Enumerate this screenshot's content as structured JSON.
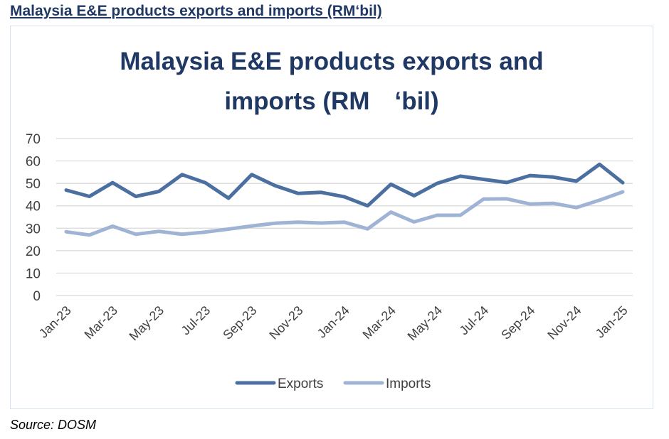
{
  "heading": "Malaysia E&E products exports and imports (RM‘bil)",
  "source": "Source: DOSM",
  "colors": {
    "exports": "#4a6fa0",
    "imports": "#9fb3d4",
    "title": "#1f3864",
    "grid": "#d9d9d9"
  },
  "chart_data": {
    "type": "line",
    "title_lines": [
      "Malaysia E&E products exports and",
      "imports (RM　‘bil)"
    ],
    "xlabel": "",
    "ylabel": "",
    "ylim": [
      0,
      70
    ],
    "yticks": [
      "0",
      "10",
      "20",
      "30",
      "40",
      "50",
      "60",
      "70"
    ],
    "x": [
      "Jan-23",
      "Feb-23",
      "Mar-23",
      "Apr-23",
      "May-23",
      "Jun-23",
      "Jul-23",
      "Aug-23",
      "Sep-23",
      "Oct-23",
      "Nov-23",
      "Dec-23",
      "Jan-24",
      "Feb-24",
      "Mar-24",
      "Apr-24",
      "May-24",
      "Jun-24",
      "Jul-24",
      "Aug-24",
      "Sep-24",
      "Oct-24",
      "Nov-24",
      "Dec-24",
      "Jan-25"
    ],
    "xtick_labels": [
      "Jan-23",
      "Mar-23",
      "May-23",
      "Jul-23",
      "Sep-23",
      "Nov-23",
      "Jan-24",
      "Mar-24",
      "May-24",
      "Jul-24",
      "Sep-24",
      "Nov-24",
      "Jan-25"
    ],
    "grid": true,
    "legend_position": "bottom",
    "series": [
      {
        "name": "Exports",
        "values": [
          47.0,
          44.2,
          50.3,
          44.2,
          46.4,
          53.9,
          50.3,
          43.4,
          53.9,
          49.0,
          45.5,
          46.0,
          44.0,
          40.0,
          49.6,
          44.5,
          50.0,
          53.2,
          51.8,
          50.4,
          53.5,
          52.8,
          51.0,
          58.5,
          50.3
        ]
      },
      {
        "name": "Imports",
        "values": [
          28.4,
          27.0,
          30.9,
          27.3,
          28.6,
          27.3,
          28.3,
          29.6,
          31.0,
          32.2,
          32.7,
          32.3,
          32.7,
          29.7,
          37.2,
          32.8,
          35.8,
          35.8,
          43.0,
          43.1,
          40.8,
          41.1,
          39.2,
          42.5,
          46.2
        ]
      }
    ]
  }
}
